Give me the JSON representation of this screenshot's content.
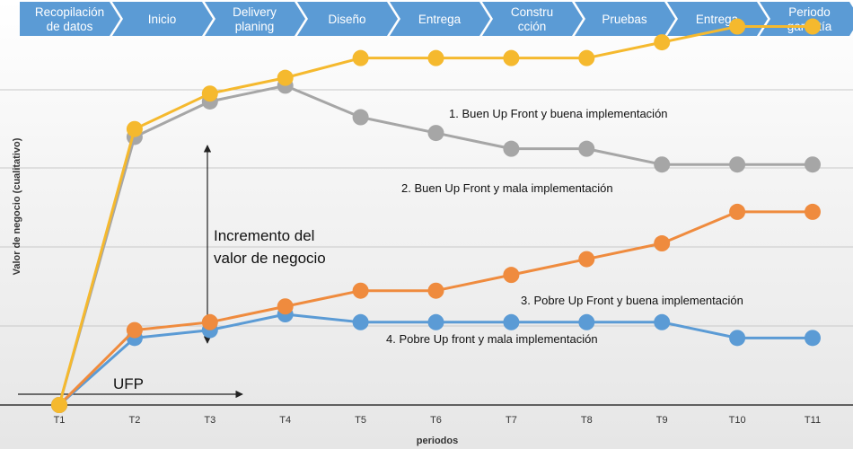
{
  "phases": [
    [
      "Recopilación",
      "de datos"
    ],
    [
      "Inicio"
    ],
    [
      "Delivery",
      "planing"
    ],
    [
      "Diseño"
    ],
    [
      "Entrega"
    ],
    [
      "Constru",
      "cción"
    ],
    [
      "Pruebas"
    ],
    [
      "Entrega"
    ],
    [
      "Periodo",
      "garantía"
    ]
  ],
  "colors": {
    "phase_arrow": "#5b9bd5",
    "series": [
      "#f5b92e",
      "#a6a6a6",
      "#ef8b3e",
      "#5b9bd5"
    ]
  },
  "chart_data": {
    "type": "line",
    "title": "",
    "xlabel": "periodos",
    "ylabel": "Valor de negocio (cualitativo)",
    "categories": [
      "T1",
      "T2",
      "T3",
      "T4",
      "T5",
      "T6",
      "T7",
      "T8",
      "T9",
      "T10",
      "T11"
    ],
    "ylim": [
      0,
      100
    ],
    "grid": true,
    "series": [
      {
        "name": "1. Buen Up Front y buena implementación",
        "values": [
          0,
          70,
          79,
          83,
          88,
          88,
          88,
          88,
          92,
          96,
          96
        ]
      },
      {
        "name": "2. Buen Up Front y mala implementación",
        "values": [
          0,
          68,
          77,
          81,
          73,
          69,
          65,
          65,
          61,
          61,
          61
        ]
      },
      {
        "name": "3. Pobre Up Front y buena implementación",
        "values": [
          0,
          19,
          21,
          25,
          29,
          29,
          33,
          37,
          41,
          49,
          49
        ]
      },
      {
        "name": "4. Pobre Up front y mala implementación",
        "values": [
          0,
          17,
          19,
          23,
          21,
          21,
          21,
          21,
          21,
          17,
          17
        ]
      }
    ],
    "annotations": {
      "increment": [
        "Incremento del",
        "valor de negocio"
      ],
      "ufp": "UFP"
    }
  }
}
